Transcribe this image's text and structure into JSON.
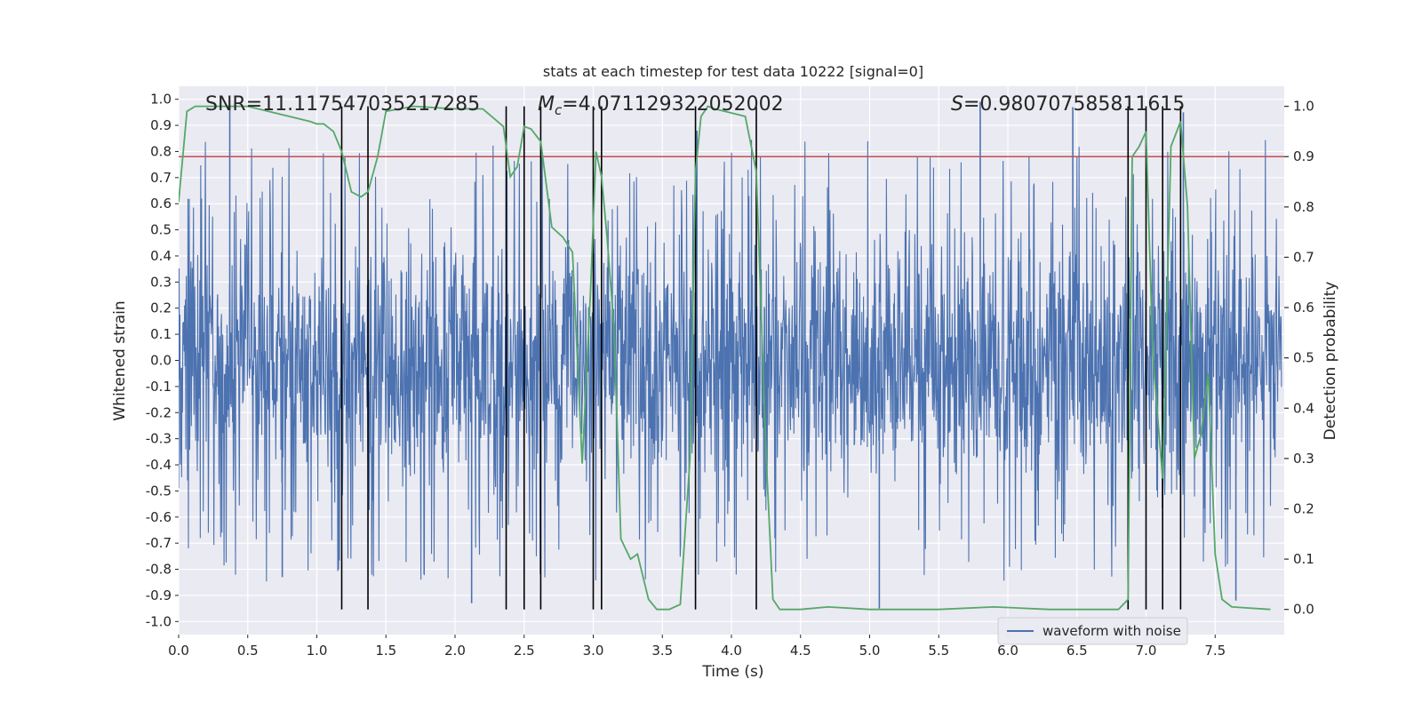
{
  "chart_data": {
    "type": "line",
    "title": "stats at each timestep for test data 10222 [signal=0]",
    "xlabel": "Time (s)",
    "ylabel_left": "Whitened strain",
    "ylabel_right": "Detection probability",
    "xlim": [
      0.0,
      8.0
    ],
    "ylim_left": [
      -1.05,
      1.05
    ],
    "ylim_right": [
      -0.05,
      1.04
    ],
    "xticks": [
      "0.0",
      "0.5",
      "1.0",
      "1.5",
      "2.0",
      "2.5",
      "3.0",
      "3.5",
      "4.0",
      "4.5",
      "5.0",
      "5.5",
      "6.0",
      "6.5",
      "7.0",
      "7.5"
    ],
    "xtick_values": [
      0.0,
      0.5,
      1.0,
      1.5,
      2.0,
      2.5,
      3.0,
      3.5,
      4.0,
      4.5,
      5.0,
      5.5,
      6.0,
      6.5,
      7.0,
      7.5
    ],
    "yticks_left": [
      "1.0",
      "0.9",
      "0.8",
      "0.7",
      "0.6",
      "0.5",
      "0.4",
      "0.3",
      "0.2",
      "0.1",
      "0.0",
      "-0.1",
      "-0.2",
      "-0.3",
      "-0.4",
      "-0.5",
      "-0.6",
      "-0.7",
      "-0.8",
      "-0.9",
      "-1.0"
    ],
    "ytick_values_left": [
      1.0,
      0.9,
      0.8,
      0.7,
      0.6,
      0.5,
      0.4,
      0.3,
      0.2,
      0.1,
      0.0,
      -0.1,
      -0.2,
      -0.3,
      -0.4,
      -0.5,
      -0.6,
      -0.7,
      -0.8,
      -0.9,
      -1.0
    ],
    "yticks_right": [
      "1.0",
      "0.9",
      "0.8",
      "0.7",
      "0.6",
      "0.5",
      "0.4",
      "0.3",
      "0.2",
      "0.1",
      "0.0"
    ],
    "ytick_values_right": [
      1.0,
      0.9,
      0.8,
      0.7,
      0.6,
      0.5,
      0.4,
      0.3,
      0.2,
      0.1,
      0.0
    ],
    "annotations": {
      "snr": "SNR=11.117547035217285",
      "mc_symbol": "M",
      "mc_sub": "c",
      "mc_value": "=4.071129322052002",
      "s_symbol": "S",
      "s_value": "=0.980707585811615"
    },
    "threshold": {
      "value": 0.9,
      "axis": "right",
      "color": "#c44e52"
    },
    "vertical_lines": [
      1.18,
      1.37,
      2.37,
      2.5,
      2.62,
      3.0,
      3.06,
      3.74,
      4.18,
      6.87,
      7.0,
      7.12,
      7.25
    ],
    "waveform": {
      "name": "waveform with noise",
      "color": "#4c72b0",
      "envelope": {
        "typical_amplitude": 0.45,
        "peak_amplitude": 0.98
      },
      "noted_spikes": [
        {
          "x": 0.37,
          "y": 0.97
        },
        {
          "x": 0.75,
          "y": -0.83
        },
        {
          "x": 2.12,
          "y": -0.93
        },
        {
          "x": 3.75,
          "y": 0.88
        },
        {
          "x": 5.07,
          "y": -0.95
        },
        {
          "x": 5.8,
          "y": 0.99
        },
        {
          "x": 6.47,
          "y": 0.97
        },
        {
          "x": 7.27,
          "y": 0.95
        },
        {
          "x": 7.65,
          "y": -0.92
        }
      ]
    },
    "detection_probability": {
      "name": "detection probability",
      "color": "#55a868",
      "x": [
        0.0,
        0.06,
        0.12,
        0.5,
        0.95,
        1.0,
        1.05,
        1.12,
        1.18,
        1.25,
        1.32,
        1.37,
        1.44,
        1.5,
        1.7,
        2.0,
        2.2,
        2.35,
        2.4,
        2.45,
        2.5,
        2.55,
        2.62,
        2.7,
        2.78,
        2.85,
        2.92,
        2.98,
        3.02,
        3.06,
        3.1,
        3.15,
        3.2,
        3.27,
        3.32,
        3.4,
        3.46,
        3.55,
        3.63,
        3.7,
        3.74,
        3.78,
        3.83,
        3.88,
        4.1,
        4.18,
        4.25,
        4.3,
        4.35,
        4.5,
        4.7,
        5.0,
        5.5,
        5.9,
        6.3,
        6.6,
        6.8,
        6.87,
        6.9,
        6.95,
        7.0,
        7.05,
        7.12,
        7.18,
        7.25,
        7.3,
        7.35,
        7.4,
        7.45,
        7.5,
        7.55,
        7.62,
        7.9
      ],
      "y": [
        0.81,
        0.99,
        1.0,
        1.0,
        0.97,
        0.965,
        0.965,
        0.95,
        0.91,
        0.83,
        0.82,
        0.83,
        0.9,
        0.99,
        1.0,
        0.995,
        0.995,
        0.96,
        0.86,
        0.88,
        0.96,
        0.955,
        0.93,
        0.76,
        0.74,
        0.71,
        0.29,
        0.63,
        0.91,
        0.86,
        0.74,
        0.56,
        0.14,
        0.1,
        0.11,
        0.02,
        0.0,
        0.0,
        0.01,
        0.3,
        0.87,
        0.98,
        1.0,
        0.995,
        0.98,
        0.87,
        0.31,
        0.02,
        0.0,
        0.0,
        0.005,
        0.0,
        0.0,
        0.005,
        0.0,
        0.0,
        0.0,
        0.02,
        0.9,
        0.92,
        0.95,
        0.5,
        0.26,
        0.92,
        0.97,
        0.8,
        0.3,
        0.35,
        0.47,
        0.11,
        0.02,
        0.005,
        0.0
      ]
    },
    "legend": {
      "label": "waveform with noise",
      "position": "lower-right"
    }
  }
}
